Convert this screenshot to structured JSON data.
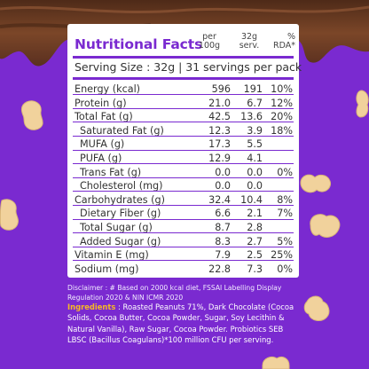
{
  "header": {
    "title": "Nutritional Facts",
    "col_per_line1": "per",
    "col_per_line2": "100g",
    "col_serv_line1": "32g",
    "col_serv_line2": "serv.",
    "col_rda_line1": "%",
    "col_rda_line2": "RDA*"
  },
  "serving": "Serving Size : 32g  |  31 servings per pack",
  "rows": [
    {
      "label": "Energy (kcal)",
      "per100": "596",
      "serv": "191",
      "rda": "10%"
    },
    {
      "label": "Protein (g)",
      "per100": "21.0",
      "serv": "6.7",
      "rda": "12%"
    },
    {
      "label": "Total Fat (g)",
      "per100": "42.5",
      "serv": "13.6",
      "rda": "20%"
    },
    {
      "label": "Saturated Fat (g)",
      "per100": "12.3",
      "serv": "3.9",
      "rda": "18%"
    },
    {
      "label": "MUFA (g)",
      "per100": "17.3",
      "serv": "5.5",
      "rda": ""
    },
    {
      "label": "PUFA (g)",
      "per100": "12.9",
      "serv": "4.1",
      "rda": ""
    },
    {
      "label": "Trans Fat (g)",
      "per100": "0.0",
      "serv": "0.0",
      "rda": "0%"
    },
    {
      "label": "Cholesterol (mg)",
      "per100": "0.0",
      "serv": "0.0",
      "rda": ""
    },
    {
      "label": "Carbohydrates (g)",
      "per100": "32.4",
      "serv": "10.4",
      "rda": "8%"
    },
    {
      "label": "Dietary Fiber (g)",
      "per100": "6.6",
      "serv": "2.1",
      "rda": "7%"
    },
    {
      "label": "Total Sugar (g)",
      "per100": "8.7",
      "serv": "2.8",
      "rda": ""
    },
    {
      "label": "Added Sugar (g)",
      "per100": "8.3",
      "serv": "2.7",
      "rda": "5%"
    },
    {
      "label": "Vitamin E (mg)",
      "per100": "7.9",
      "serv": "2.5",
      "rda": "25%"
    },
    {
      "label": "Sodium (mg)",
      "per100": "22.8",
      "serv": "7.3",
      "rda": "0%"
    }
  ],
  "disclaimer": "Disclaimer : # Based on  2000 kcal diet, FSSAI Labelling Display Regulation 2020 & NIN ICMR 2020",
  "ingredients": {
    "label": "Ingredients",
    "text": " : Roasted Peanuts 71%, Dark Chocolate (Cocoa Solids, Cocoa Butter, Cocoa Powder, Sugar, Soy Lecithin & Natural Vanilla), Raw Sugar, Cocoa Powder. Probiotics SEB LBSC (Bacillus Coagulans)*100 million CFU per serving."
  },
  "colors": {
    "background": "#7a2ad0",
    "accent": "#7a2ad0",
    "chocolate": "#6b3a22",
    "ingredients_label": "#f7b824",
    "peanut": "#f1d29c"
  },
  "decor_icons": [
    "chocolate-drip-icon",
    "peanut-icon"
  ]
}
